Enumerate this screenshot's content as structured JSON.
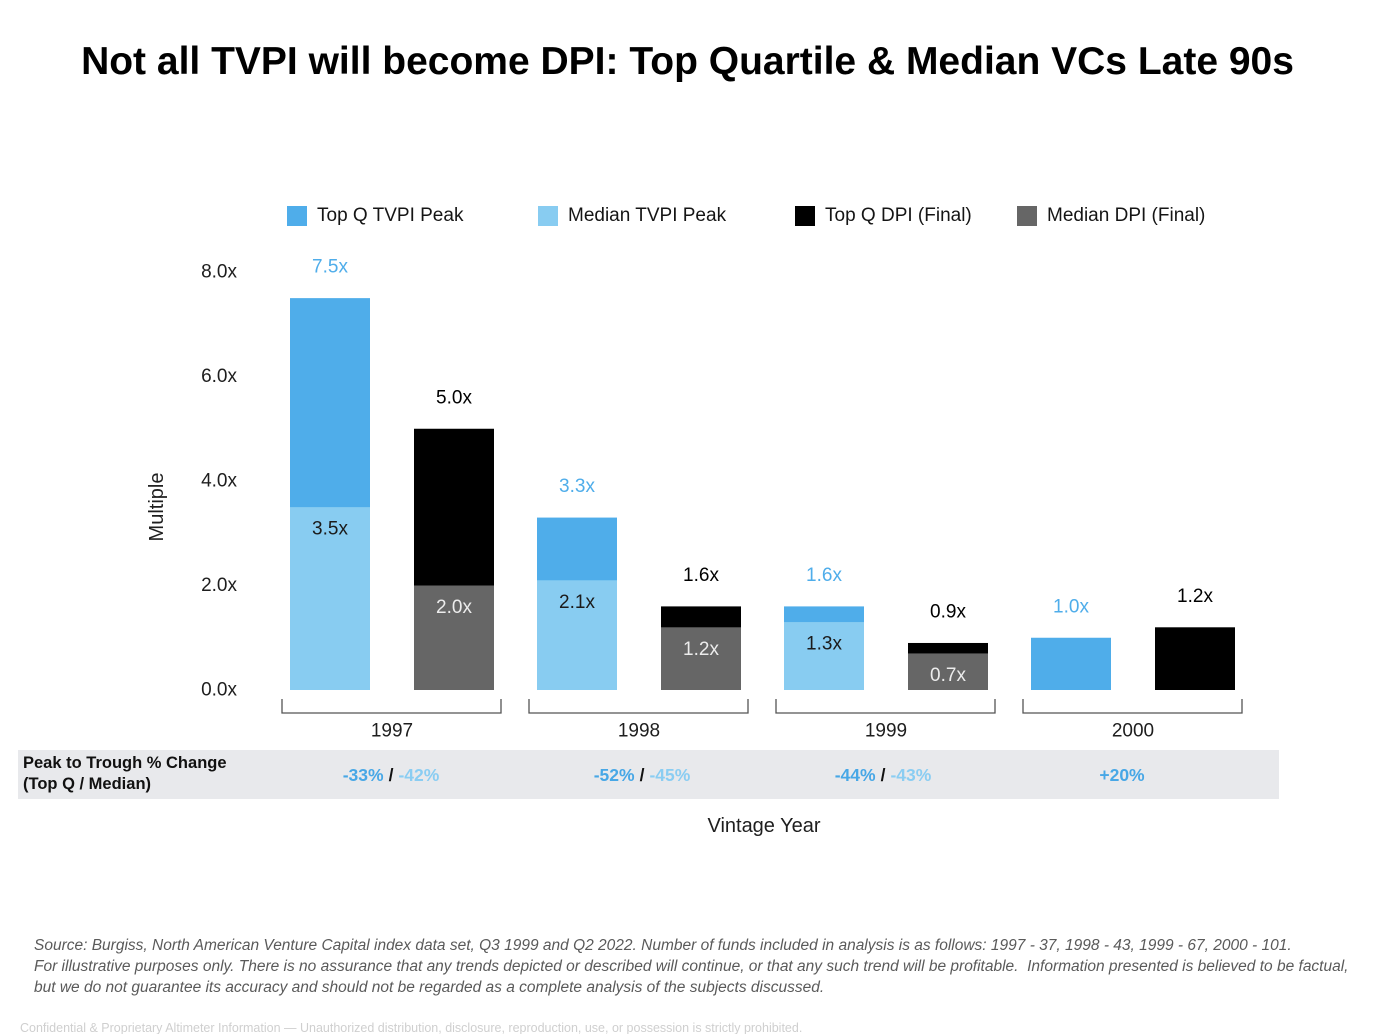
{
  "chart_data": {
    "type": "bar",
    "title": "Not all TVPI will become DPI: Top Quartile & Median VCs Late 90s",
    "xlabel": "Vintage Year",
    "ylabel": "Multiple",
    "ylim": [
      0,
      8
    ],
    "yticks": [
      0,
      2,
      4,
      6,
      8
    ],
    "ytick_labels": [
      "0.0x",
      "2.0x",
      "4.0x",
      "6.0x",
      "8.0x"
    ],
    "grid": false,
    "legend": "top",
    "categories": [
      "1997",
      "1998",
      "1999",
      "2000"
    ],
    "series": [
      {
        "name": "Top Q TVPI Peak",
        "values": [
          7.5,
          3.3,
          1.6,
          1.0
        ],
        "labels": [
          "7.5x",
          "3.3x",
          "1.6x",
          "1.0x"
        ],
        "color": "#4FADEA"
      },
      {
        "name": "Median TVPI Peak",
        "values": [
          3.5,
          2.1,
          1.3,
          null
        ],
        "labels": [
          "3.5x",
          "2.1x",
          "1.3x",
          null
        ],
        "color": "#88CCF1"
      },
      {
        "name": "Top Q DPI (Final)",
        "values": [
          5.0,
          1.6,
          0.9,
          1.2
        ],
        "labels": [
          "5.0x",
          "1.6x",
          "0.9x",
          "1.2x"
        ],
        "color": "#000000"
      },
      {
        "name": "Median DPI (Final)",
        "values": [
          2.0,
          1.2,
          0.7,
          null
        ],
        "labels": [
          "2.0x",
          "1.2x",
          "0.7x",
          null
        ],
        "color": "#666666"
      }
    ]
  },
  "peak_to_trough": {
    "label_line1": "Peak to Trough % Change",
    "label_line2": "(Top Q / Median)",
    "separator": "/",
    "values": [
      {
        "top_q": "-33%",
        "median": "-42%"
      },
      {
        "top_q": "-52%",
        "median": "-45%"
      },
      {
        "top_q": "-44%",
        "median": "-43%"
      },
      {
        "top_q": "+20%",
        "median": null
      }
    ]
  },
  "footnotes": {
    "source": "Source: Burgiss, North American Venture Capital index data set, Q3 1999 and Q2 2022. Number of funds included in analysis is as follows: 1997 - 37, 1998 - 43, 1999 - 67, 2000 - 101.",
    "disclaimer_line1": "For illustrative purposes only. There is no assurance that any trends depicted or described will continue, or that any such trend will be profitable.  Information presented is believed to be factual,",
    "disclaimer_line2": "but we do not guarantee its accuracy and should not be regarded as a complete analysis of the subjects discussed."
  },
  "footer": {
    "confidential": "Confidential & Proprietary Altimeter Information — Unauthorized distribution, disclosure, reproduction, use, or possession is strictly prohibited."
  }
}
